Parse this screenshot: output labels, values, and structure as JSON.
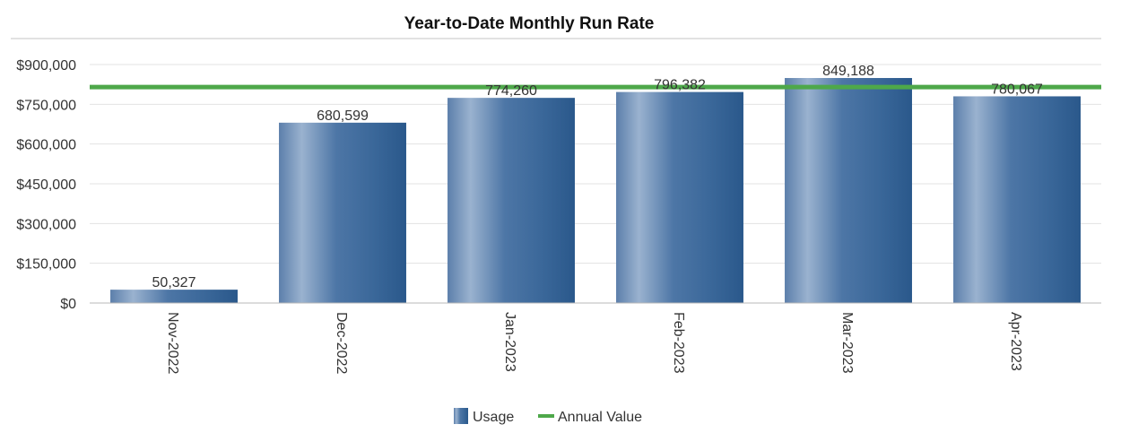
{
  "chart_data": {
    "type": "bar",
    "title": "Year-to-Date Monthly Run Rate",
    "categories": [
      "Nov-2022",
      "Dec-2022",
      "Jan-2023",
      "Feb-2023",
      "Mar-2023",
      "Apr-2023"
    ],
    "series": [
      {
        "name": "Usage",
        "type": "bar",
        "values": [
          50327,
          680599,
          774260,
          796382,
          849188,
          780067
        ],
        "data_labels": [
          "50,327",
          "680,599",
          "774,260",
          "796,382",
          "849,188",
          "780,067"
        ]
      },
      {
        "name": "Annual Value",
        "type": "line",
        "value": 815000
      }
    ],
    "ylim": [
      0,
      900000
    ],
    "yticks": [
      0,
      150000,
      300000,
      450000,
      600000,
      750000,
      900000
    ],
    "ytick_labels": [
      "$0",
      "$150,000",
      "$300,000",
      "$450,000",
      "$600,000",
      "$750,000",
      "$900,000"
    ],
    "grid": true,
    "legend": "bottom-center",
    "colors": {
      "bar_light": "#8fa9c8",
      "bar_mid": "#4a73a3",
      "bar_dark": "#2e5f94",
      "annual_line": "#4ea84a",
      "grid": "#e3e3e3",
      "axis": "#b8b8b8"
    }
  }
}
